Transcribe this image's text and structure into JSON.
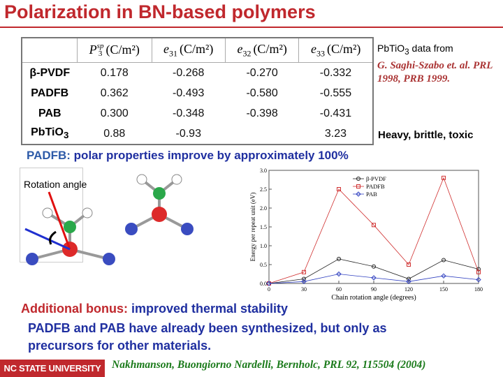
{
  "title": "Polarization in BN-based polymers",
  "table": {
    "columns": [
      {
        "symbol": "P",
        "sup": "sp",
        "sub": "3",
        "unit": "(C/m²)"
      },
      {
        "symbol": "e",
        "sub": "31",
        "unit": "(C/m²)"
      },
      {
        "symbol": "e",
        "sub": "32",
        "unit": "(C/m²)"
      },
      {
        "symbol": "e",
        "sub": "33",
        "unit": "(C/m²)"
      }
    ],
    "rows": [
      {
        "name": {
          "text": "β-PVDF"
        },
        "cells": [
          "0.178",
          "-0.268",
          "-0.270",
          "-0.332"
        ]
      },
      {
        "name": {
          "text": "PADFB"
        },
        "cells": [
          "0.362",
          "-0.493",
          "-0.580",
          "-0.555"
        ]
      },
      {
        "name": {
          "text": "PAB"
        },
        "cells": [
          "0.300",
          "-0.348",
          "-0.398",
          "-0.431"
        ]
      },
      {
        "name": {
          "text": "PbTiO",
          "sub": "3"
        },
        "cells": [
          "0.88",
          "-0.93",
          null,
          "3.23"
        ]
      }
    ]
  },
  "note": {
    "text": "PbTiO",
    "sub": "3",
    "tail": " data from",
    "ref": "G. Saghi-Szabo et. al. PRL 1998, PRB 1999."
  },
  "remark": "Heavy, brittle, toxic",
  "headline": {
    "lead": "PADFB:",
    "text": " polar properties improve by approximately 100%"
  },
  "diagram": {
    "label": "Rotation angle"
  },
  "chart": {
    "type": "line",
    "x": [
      0,
      30,
      60,
      90,
      120,
      150,
      180
    ],
    "xlim": [
      0,
      180
    ],
    "xticks": [
      0,
      30,
      60,
      90,
      120,
      150,
      180
    ],
    "ylim": [
      0,
      3
    ],
    "yticks": [
      {
        "value": 0,
        "label": "0.0"
      },
      0.5,
      {
        "value": 1,
        "label": "1.0"
      },
      1.5,
      {
        "value": 2,
        "label": "2.0"
      },
      2.5,
      {
        "value": 3,
        "label": "3.0"
      }
    ],
    "xlabel": "Chain rotation angle (degrees)",
    "ylabel": "Energy per repeat unit (eV)",
    "series": [
      {
        "name": "β-PVDF",
        "color": "#222222",
        "marker": "circle",
        "values": [
          0,
          0.12,
          0.65,
          0.45,
          0.12,
          0.62,
          0.38
        ]
      },
      {
        "name": "PADFB",
        "color": "#d03030",
        "marker": "square",
        "values": [
          0,
          0.3,
          2.5,
          1.55,
          0.5,
          2.8,
          0.3
        ]
      },
      {
        "name": "PAB",
        "color": "#3040c0",
        "marker": "diamond",
        "values": [
          0,
          0.05,
          0.25,
          0.15,
          0.05,
          0.2,
          0.1
        ]
      }
    ]
  },
  "bonus": {
    "lead": "Additional bonus:",
    "text": " improved thermal stability"
  },
  "body": "PADFB and PAB have already been synthesized, but only as precursors for other materials.",
  "footer": {
    "logo": "NC STATE UNIVERSITY",
    "citation": "Nakhmanson, Buongiorno Nardelli, Bernholc, PRL 92, 115504 (2004)"
  }
}
